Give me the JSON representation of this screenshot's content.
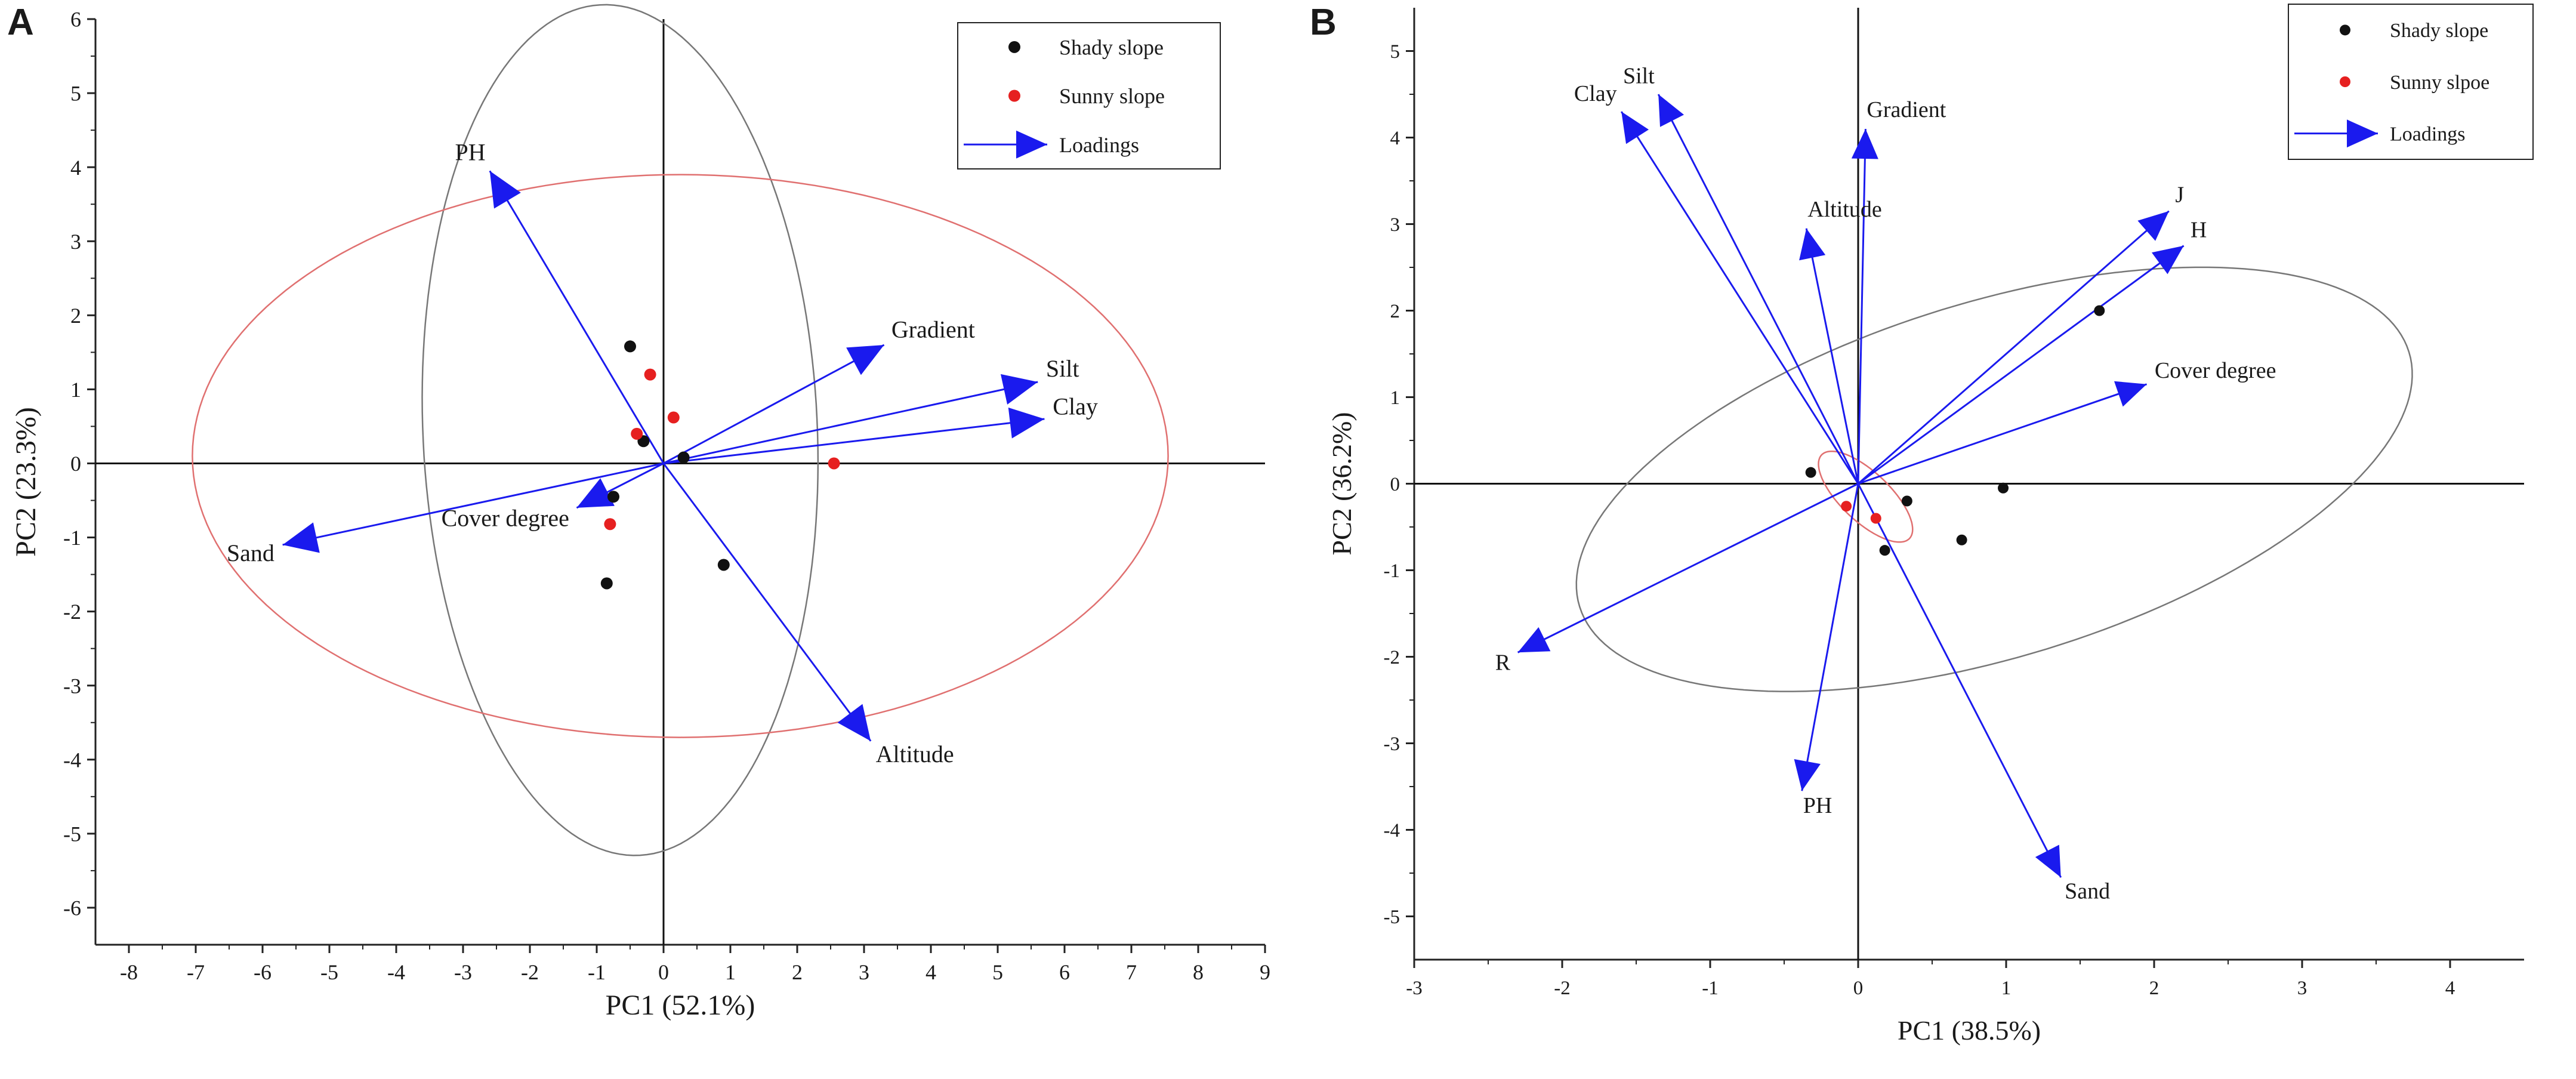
{
  "chart_data": [
    {
      "panel": "A",
      "type": "scatter",
      "xlabel": "PC1 (52.1%)",
      "ylabel": "PC2 (23.3%)",
      "xlim": [
        -8.5,
        9
      ],
      "ylim": [
        -6.5,
        6
      ],
      "xticks": [
        -8,
        -7,
        -6,
        -5,
        -4,
        -3,
        -2,
        -1,
        0,
        1,
        2,
        3,
        4,
        5,
        6,
        7,
        8,
        9
      ],
      "yticks": [
        -6,
        -5,
        -4,
        -3,
        -2,
        -1,
        0,
        1,
        2,
        3,
        4,
        5,
        6
      ],
      "legend": {
        "position": "top-right",
        "shady_label": "Shady slope",
        "sunny_label": "Sunny slope",
        "loadings_label": "Loadings"
      },
      "shady_points": [
        [
          -0.5,
          1.58
        ],
        [
          -0.3,
          0.3
        ],
        [
          0.3,
          0.08
        ],
        [
          -0.75,
          -0.45
        ],
        [
          -0.85,
          -1.62
        ],
        [
          0.9,
          -1.37
        ]
      ],
      "sunny_points": [
        [
          -0.2,
          1.2
        ],
        [
          0.15,
          0.62
        ],
        [
          -0.4,
          0.4
        ],
        [
          -0.8,
          -0.82
        ],
        [
          2.55,
          0.0
        ]
      ],
      "loadings": [
        {
          "name": "PH",
          "x": -2.6,
          "y": 3.95
        },
        {
          "name": "Gradient",
          "x": 3.3,
          "y": 1.6
        },
        {
          "name": "Silt",
          "x": 5.6,
          "y": 1.1
        },
        {
          "name": "Clay",
          "x": 5.7,
          "y": 0.6
        },
        {
          "name": "Cover degree",
          "x": -1.3,
          "y": -0.6
        },
        {
          "name": "Sand",
          "x": -5.7,
          "y": -1.1
        },
        {
          "name": "Altitude",
          "x": 3.1,
          "y": -3.75
        }
      ],
      "ellipses": [
        {
          "group": "Shady slope",
          "color": "#777777",
          "cx": -0.65,
          "cy": 0.45,
          "rx": 2.95,
          "ry": 5.75,
          "angle_deg": 3
        },
        {
          "group": "Sunny slope",
          "color": "#e07070",
          "cx": 0.25,
          "cy": 0.1,
          "rx": 7.3,
          "ry": 3.8,
          "angle_deg": 0
        }
      ]
    },
    {
      "panel": "B",
      "type": "scatter",
      "xlabel": "PC1 (38.5%)",
      "ylabel": "PC2 (36.2%)",
      "xlim": [
        -3,
        4.5
      ],
      "ylim": [
        -5.5,
        5.5
      ],
      "xticks": [
        -3,
        -2,
        -1,
        0,
        1,
        2,
        3,
        4
      ],
      "yticks": [
        -5,
        -4,
        -3,
        -2,
        -1,
        0,
        1,
        2,
        3,
        4,
        5
      ],
      "legend": {
        "position": "top-right",
        "shady_label": "Shady slope",
        "sunny_label": "Sunny slpoe",
        "loadings_label": "Loadings"
      },
      "shady_points": [
        [
          -0.32,
          0.13
        ],
        [
          0.33,
          -0.2
        ],
        [
          0.18,
          -0.77
        ],
        [
          0.7,
          -0.65
        ],
        [
          0.98,
          -0.05
        ],
        [
          1.63,
          2.0
        ]
      ],
      "sunny_points": [
        [
          -0.08,
          -0.26
        ],
        [
          0.12,
          -0.4
        ]
      ],
      "loadings": [
        {
          "name": "Clay",
          "x": -1.6,
          "y": 4.3
        },
        {
          "name": "Silt",
          "x": -1.35,
          "y": 4.5
        },
        {
          "name": "Gradient",
          "x": 0.05,
          "y": 4.1
        },
        {
          "name": "Altitude",
          "x": -0.35,
          "y": 2.95
        },
        {
          "name": "J",
          "x": 2.1,
          "y": 3.15
        },
        {
          "name": "H",
          "x": 2.2,
          "y": 2.75
        },
        {
          "name": "Cover degree",
          "x": 1.95,
          "y": 1.15
        },
        {
          "name": "R",
          "x": -2.3,
          "y": -1.95
        },
        {
          "name": "PH",
          "x": -0.38,
          "y": -3.55
        },
        {
          "name": "Sand",
          "x": 1.37,
          "y": -4.55
        }
      ],
      "ellipses": [
        {
          "group": "Shady slope",
          "color": "#777777",
          "cx": 0.92,
          "cy": 0.05,
          "rx": 3.25,
          "ry": 1.85,
          "angle_deg": 37
        },
        {
          "group": "Sunny slope",
          "color": "#e07070",
          "cx": 0.05,
          "cy": -0.15,
          "rx": 0.58,
          "ry": 0.2,
          "angle_deg": -63
        }
      ]
    }
  ]
}
